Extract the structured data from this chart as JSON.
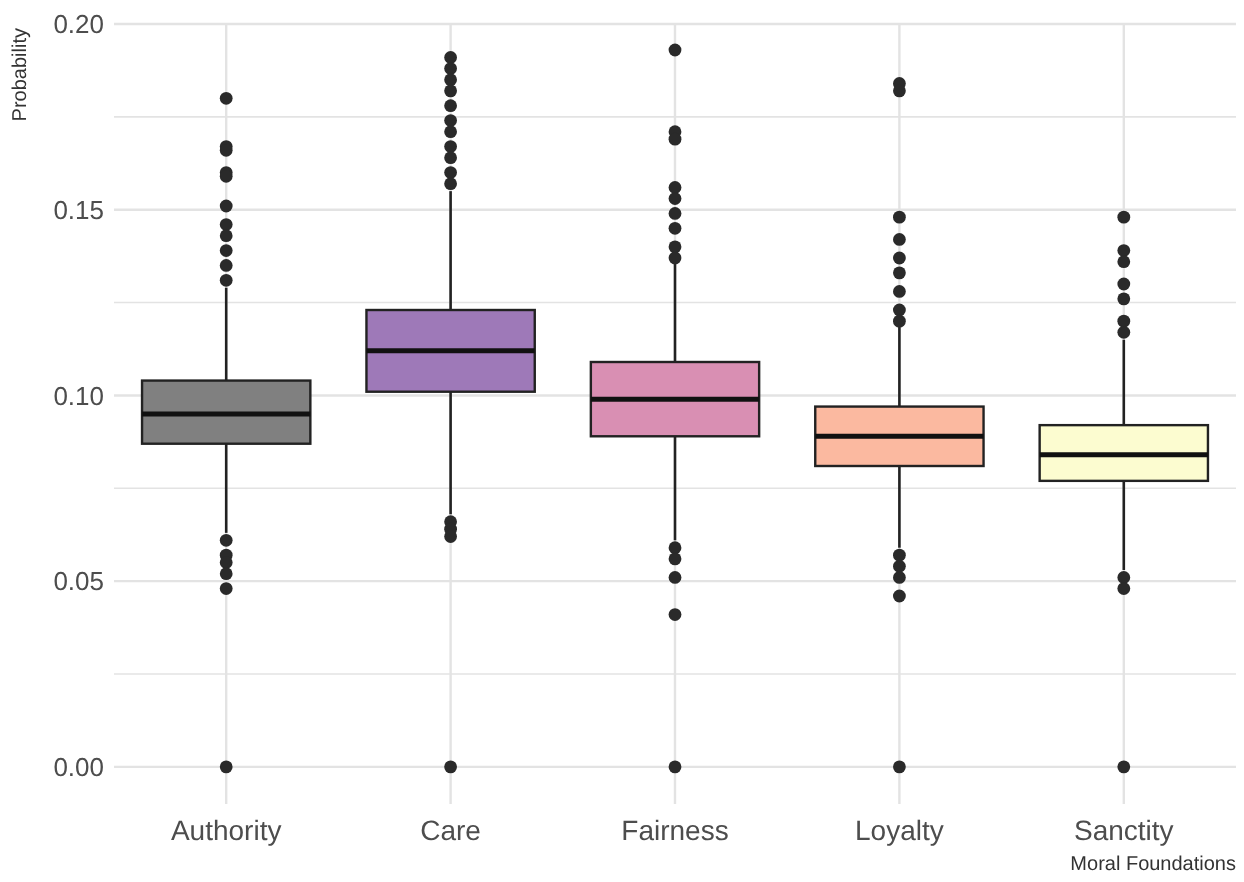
{
  "chart_data": {
    "type": "box",
    "xlabel": "Moral Foundations",
    "ylabel": "Probability",
    "categories": [
      "Authority",
      "Care",
      "Fairness",
      "Loyalty",
      "Sanctity"
    ],
    "colors": [
      "#808080",
      "#9e79b8",
      "#d98fb3",
      "#fbb9a0",
      "#fcfcd0"
    ],
    "boxes": [
      {
        "low": 0.063,
        "q1": 0.087,
        "median": 0.095,
        "q3": 0.104,
        "high": 0.129,
        "outliers": [
          0.18,
          0.167,
          0.166,
          0.16,
          0.159,
          0.151,
          0.146,
          0.143,
          0.139,
          0.135,
          0.131,
          0.061,
          0.057,
          0.055,
          0.052,
          0.048,
          0
        ]
      },
      {
        "low": 0.068,
        "q1": 0.101,
        "median": 0.112,
        "q3": 0.123,
        "high": 0.155,
        "outliers": [
          0.191,
          0.188,
          0.185,
          0.182,
          0.178,
          0.174,
          0.171,
          0.167,
          0.164,
          0.16,
          0.157,
          0.066,
          0.064,
          0.062,
          0
        ]
      },
      {
        "low": 0.061,
        "q1": 0.089,
        "median": 0.099,
        "q3": 0.109,
        "high": 0.136,
        "outliers": [
          0.193,
          0.171,
          0.169,
          0.156,
          0.153,
          0.149,
          0.145,
          0.14,
          0.137,
          0.059,
          0.056,
          0.051,
          0.041,
          0
        ]
      },
      {
        "low": 0.059,
        "q1": 0.081,
        "median": 0.089,
        "q3": 0.097,
        "high": 0.119,
        "outliers": [
          0.184,
          0.182,
          0.148,
          0.142,
          0.137,
          0.133,
          0.128,
          0.123,
          0.12,
          0.057,
          0.054,
          0.051,
          0.046,
          0
        ]
      },
      {
        "low": 0.053,
        "q1": 0.077,
        "median": 0.084,
        "q3": 0.092,
        "high": 0.115,
        "outliers": [
          0.148,
          0.139,
          0.136,
          0.13,
          0.126,
          0.12,
          0.117,
          0.051,
          0.048,
          0
        ]
      }
    ],
    "ylim": [
      -0.01,
      0.2
    ],
    "yticks": [
      {
        "value": 0,
        "label": "0.00"
      },
      {
        "value": 0.025,
        "label": null
      },
      {
        "value": 0.05,
        "label": "0.05"
      },
      {
        "value": 0.075,
        "label": null
      },
      {
        "value": 0.1,
        "label": "0.10"
      },
      {
        "value": 0.125,
        "label": null
      },
      {
        "value": 0.15,
        "label": "0.15"
      },
      {
        "value": 0.175,
        "label": null
      },
      {
        "value": 0.2,
        "label": "0.20"
      }
    ],
    "grid": true
  }
}
